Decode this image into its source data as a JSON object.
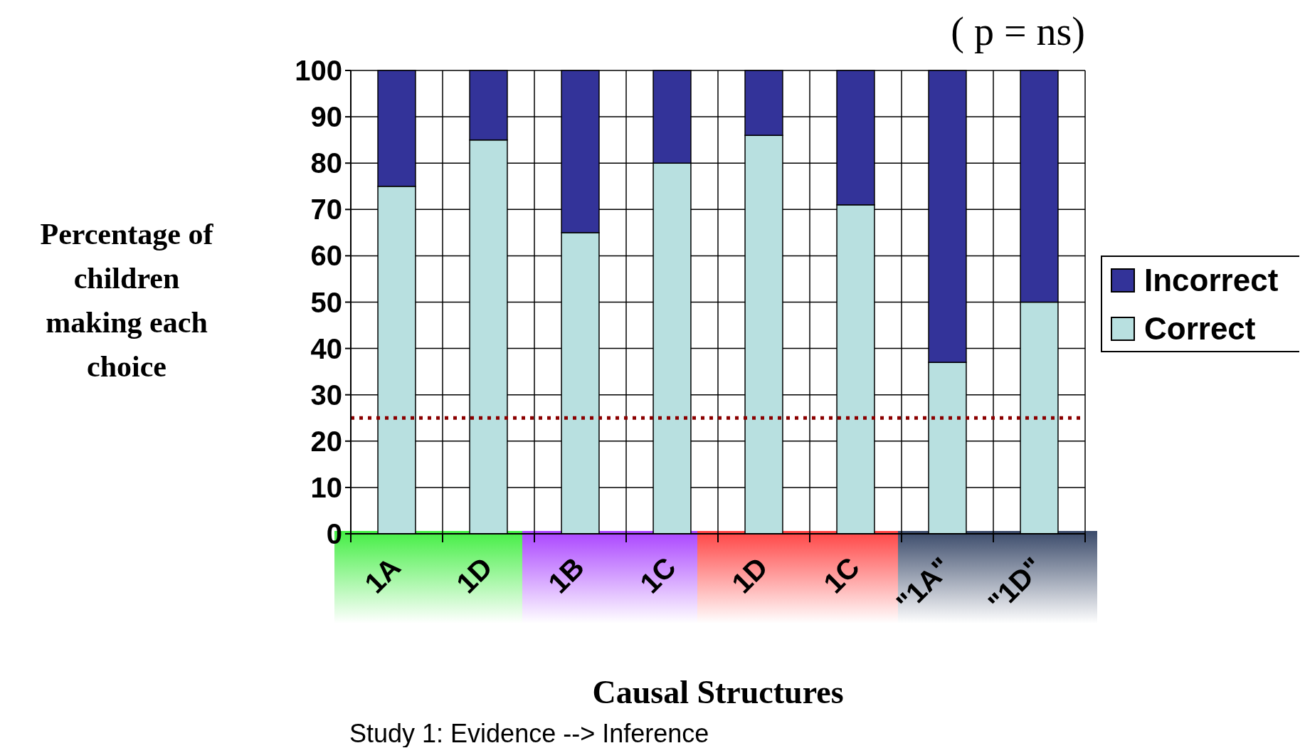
{
  "chart_data": {
    "type": "bar",
    "stacked": true,
    "xlabel": "Causal Structures",
    "ylabel": "Percentage of children making each choice",
    "categories": [
      "1A",
      "1D",
      "1B",
      "1C",
      "1D",
      "1C",
      "\"1A\"",
      "\"1D\""
    ],
    "series": [
      {
        "name": "Correct",
        "color": "#b8e0e0",
        "values": [
          75,
          85,
          65,
          80,
          86,
          71,
          37,
          50
        ]
      },
      {
        "name": "Incorrect",
        "color": "#333399",
        "values": [
          25,
          15,
          35,
          20,
          14,
          29,
          63,
          50
        ]
      }
    ],
    "ylim": [
      0,
      100
    ],
    "yticks": [
      0,
      10,
      20,
      30,
      40,
      50,
      60,
      70,
      80,
      90,
      100
    ],
    "grid": true,
    "legend": "right",
    "ref_lines": [
      {
        "axis": "y",
        "value": 25,
        "color": "#8b0000",
        "line_style": "dotted"
      }
    ],
    "annotations": [
      "( p = ns)",
      "Study 1: Evidence --> Inference"
    ]
  }
}
